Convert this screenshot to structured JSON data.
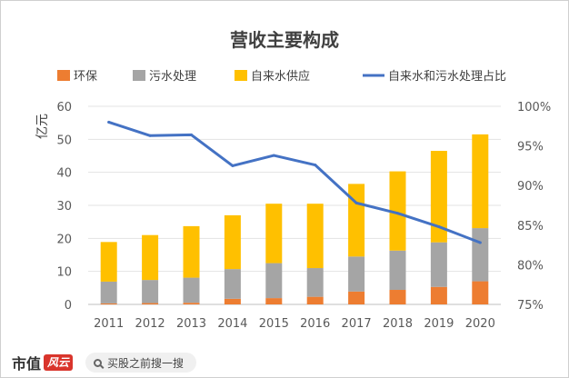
{
  "chart_data": {
    "type": "bar",
    "stacked": true,
    "title": "营收主要构成",
    "ylabel": "亿元",
    "categories": [
      "2011",
      "2012",
      "2013",
      "2014",
      "2015",
      "2016",
      "2017",
      "2018",
      "2019",
      "2020"
    ],
    "ylim": [
      0,
      60
    ],
    "yticks": [
      0,
      10,
      20,
      30,
      40,
      50,
      60
    ],
    "y2lim": [
      75,
      100
    ],
    "y2ticks": [
      "75%",
      "80%",
      "85%",
      "90%",
      "95%",
      "100%"
    ],
    "legend_position": "top",
    "series": [
      {
        "name": "环保",
        "type": "bar",
        "color": "#ED7D31",
        "values": [
          0.3,
          0.4,
          0.5,
          1.7,
          1.9,
          2.3,
          3.9,
          4.4,
          5.3,
          7.0
        ]
      },
      {
        "name": "污水处理",
        "type": "bar",
        "color": "#A5A5A5",
        "values": [
          6.6,
          7.0,
          7.6,
          9.0,
          10.6,
          8.7,
          10.6,
          11.9,
          13.5,
          16.1
        ]
      },
      {
        "name": "自来水供应",
        "type": "bar",
        "color": "#FFC000",
        "values": [
          12.0,
          13.6,
          15.6,
          16.3,
          18.0,
          19.5,
          22.0,
          24.0,
          27.7,
          28.4
        ]
      },
      {
        "name": "自来水和污水处理占比",
        "type": "line",
        "axis": "secondary",
        "color": "#4472C4",
        "values": [
          98.0,
          96.3,
          96.4,
          92.5,
          93.8,
          92.6,
          87.8,
          86.5,
          84.8,
          82.8
        ]
      }
    ]
  },
  "footer": {
    "brand": "市值",
    "brand_badge": "风云",
    "search_text": "买股之前搜一搜"
  }
}
